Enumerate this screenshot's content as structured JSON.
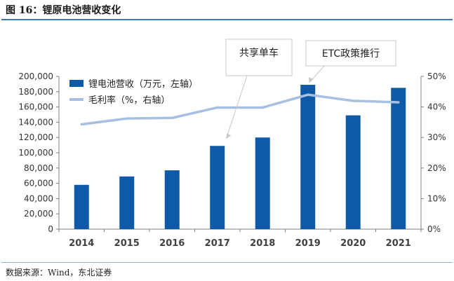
{
  "figure": {
    "title": "图 16：锂原电池营收变化",
    "source": "数据来源：Wind，东北证券"
  },
  "colors": {
    "bar": "#0f5aa6",
    "line": "#a7bfe0",
    "title_rule": "#3b78b5",
    "axis": "#7f7f7f"
  },
  "chart_data": {
    "type": "bar",
    "categories": [
      "2014",
      "2015",
      "2016",
      "2017",
      "2018",
      "2019",
      "2020",
      "2021"
    ],
    "series": [
      {
        "name": "锂电池营收（万元，左轴）",
        "type": "bar",
        "axis": "left",
        "values": [
          58000,
          69000,
          77000,
          109000,
          120000,
          189000,
          149000,
          185000
        ]
      },
      {
        "name": "毛利率（%，右轴）",
        "type": "line",
        "axis": "right",
        "values": [
          34.3,
          36.2,
          36.4,
          39.8,
          39.8,
          44.0,
          42.0,
          41.5
        ]
      }
    ],
    "y_left": {
      "ylim": [
        0,
        200000
      ],
      "ticks": [
        "0",
        "20,000",
        "40,000",
        "60,000",
        "80,000",
        "100,000",
        "120,000",
        "140,000",
        "160,000",
        "180,000",
        "200,000"
      ]
    },
    "y_right": {
      "ylim": [
        0,
        50
      ],
      "ticks": [
        "0%",
        "10%",
        "20%",
        "30%",
        "40%",
        "50%"
      ]
    },
    "legend_placement": "top-left",
    "grid": false,
    "annotations": [
      {
        "text": "共享单车",
        "category": "2017"
      },
      {
        "text": "ETC政策推行",
        "category": "2019"
      }
    ]
  }
}
